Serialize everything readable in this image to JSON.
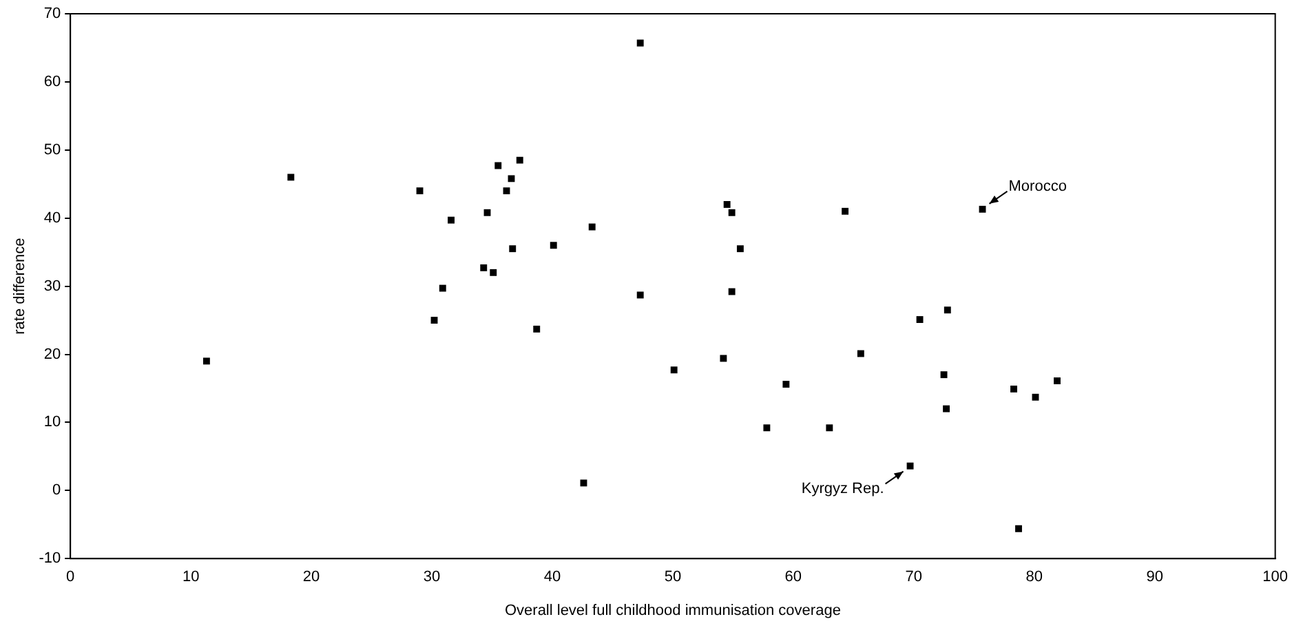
{
  "chart_data": {
    "type": "scatter",
    "xlabel": "Overall level full childhood immunisation coverage",
    "ylabel": "rate difference",
    "xlim": [
      0,
      100
    ],
    "xticks": [
      0,
      10,
      20,
      30,
      40,
      50,
      60,
      70,
      80,
      90,
      100
    ],
    "ylim": [
      -10,
      70
    ],
    "yticks": [
      -10,
      0,
      10,
      20,
      30,
      40,
      50,
      60,
      70
    ],
    "grid": false,
    "legend": false,
    "marker": "square",
    "series": [
      {
        "color": "#000000",
        "x": [
          11.3,
          18.3,
          29,
          30.2,
          30.9,
          31.6,
          34.3,
          34.6,
          35.1,
          35.5,
          36.2,
          36.6,
          36.7,
          37.3,
          38.7,
          40.1,
          42.6,
          43.3,
          47.3,
          47.3,
          50.1,
          54.2,
          54.5,
          54.9,
          54.9,
          55.6,
          57.8,
          59.4,
          63,
          64.3,
          65.6,
          69.7,
          70.5,
          72.5,
          72.7,
          72.8,
          75.7,
          78.3,
          78.7,
          80.1,
          81.9
        ],
        "values": [
          19,
          46,
          44,
          25,
          29.7,
          39.7,
          32.7,
          40.8,
          32,
          47.7,
          44,
          45.8,
          35.5,
          48.5,
          23.7,
          36,
          1.1,
          38.7,
          65.7,
          28.7,
          17.7,
          19.4,
          42,
          40.8,
          29.2,
          35.5,
          9.2,
          15.6,
          9.2,
          41,
          20.1,
          3.6,
          25.1,
          17,
          12,
          26.5,
          41.3,
          14.9,
          -5.6,
          13.7,
          16.1
        ]
      }
    ],
    "annotations": [
      {
        "text": "Morocco",
        "x": 75.7,
        "y": 41.3
      },
      {
        "text": "Kyrgyz Rep.",
        "x": 69.7,
        "y": 3.6
      }
    ]
  }
}
